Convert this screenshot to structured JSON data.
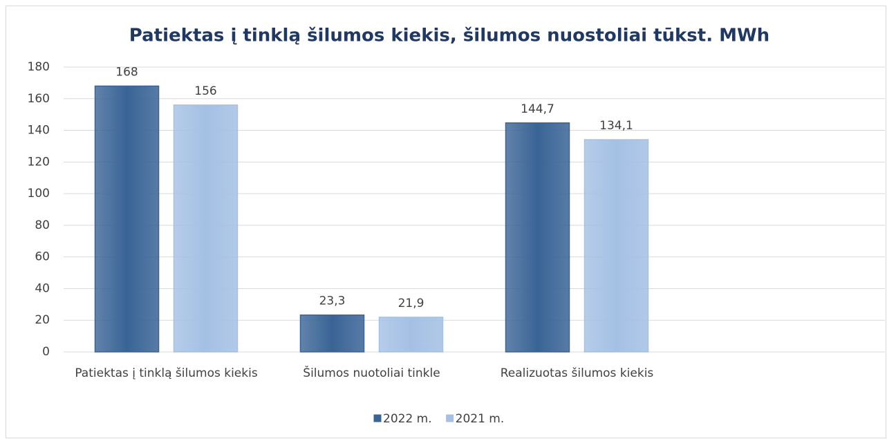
{
  "chart_data": {
    "type": "bar",
    "title": "Patiektas į tinklą šilumos kiekis, šilumos nuostoliai tūkst. MWh",
    "categories": [
      "Patiektas į tinklą šilumos kiekis",
      "Šilumos nuotoliai tinkle",
      "Realizuotas šilumos kiekis",
      null
    ],
    "series": [
      {
        "name": "2022 m.",
        "color": "#3a6496",
        "values": [
          168,
          23.3,
          144.7,
          null
        ],
        "value_labels": [
          "168",
          "23,3",
          "144,7",
          null
        ]
      },
      {
        "name": "2021 m.",
        "color": "#a4c0e4",
        "values": [
          156,
          21.9,
          134.1,
          null
        ],
        "value_labels": [
          "156",
          "21,9",
          "134,1",
          null
        ]
      }
    ],
    "ylim": [
      0,
      180
    ],
    "yticks": [
      0,
      20,
      40,
      60,
      80,
      100,
      120,
      140,
      160,
      180
    ],
    "grid": true,
    "legend": "bottom"
  }
}
